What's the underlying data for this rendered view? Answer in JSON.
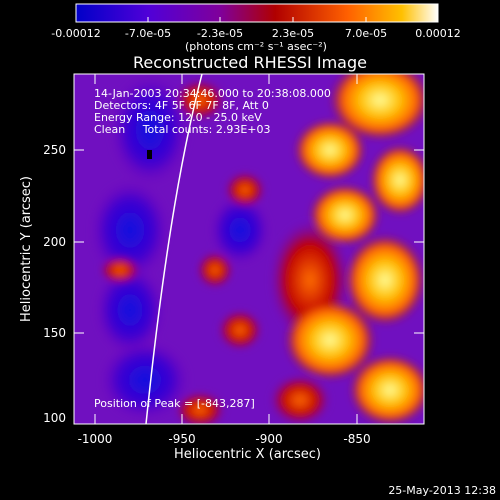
{
  "colorbar": {
    "ticks": [
      "-0.00012",
      "-7.0e-05",
      "-2.3e-05",
      "2.3e-05",
      "7.0e-05",
      "0.00012"
    ],
    "units": "(photons cm⁻² s⁻¹ asec⁻²)",
    "colors": [
      "#0000c8",
      "#5a00d0",
      "#8000a0",
      "#b00000",
      "#ff6000",
      "#ffc000",
      "#ffffff"
    ]
  },
  "title": "Reconstructed RHESSI Image",
  "overlay": {
    "time": "14-Jan-2003 20:34:46.000 to 20:38:08.000",
    "detectors": "Detectors: 4F 5F 6F 7F 8F, Att 0",
    "energy": "Energy Range: 12.0 - 25.0 keV",
    "clean": "Clean     Total counts: 2.93E+03",
    "peak": "Position of Peak = [-843,287]"
  },
  "x_axis": {
    "label": "Heliocentric X (arcsec)",
    "ticks": [
      "-1000",
      "-950",
      "-900",
      "-850"
    ]
  },
  "y_axis": {
    "label": "Heliocentric Y (arcsec)",
    "ticks": [
      "250",
      "200",
      "150",
      "100"
    ]
  },
  "footer": {
    "date": "25-May-2013 12:38"
  }
}
